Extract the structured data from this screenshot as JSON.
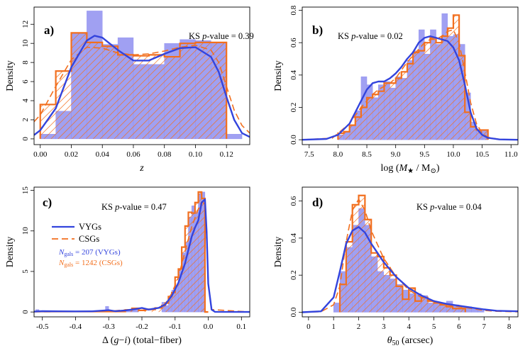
{
  "figure": {
    "colors": {
      "vygs": "#3344dd",
      "vygs_fill": "#8f8ff0",
      "csgs": "#f26f1e"
    }
  },
  "legend": {
    "vygs_label": "VYGs",
    "csgs_label": "CSGs",
    "ngal_symbol": "N",
    "ngal_subscript": "gals",
    "vygs_count": " = 207 (VYGs)",
    "csgs_count": " = 1242 (CSGs)"
  },
  "chart_data": [
    {
      "id": "a",
      "type": "histogram",
      "panel_tag": "a)",
      "ks_prefix": "KS ",
      "ks_italic": "p",
      "ks_suffix": "-value = 0.39",
      "xlabel_parts": [
        {
          "t": "z",
          "i": true
        }
      ],
      "ylabel": "Density",
      "xlim": [
        -0.004,
        0.135
      ],
      "ylim": [
        -0.6,
        13.8
      ],
      "xticks": [
        0.0,
        0.02,
        0.04,
        0.06,
        0.08,
        0.1,
        0.12
      ],
      "xtick_labels": [
        "0.00",
        "0.02",
        "0.04",
        "0.06",
        "0.08",
        "0.10",
        "0.12"
      ],
      "yticks": [
        0,
        2,
        4,
        6,
        8,
        10,
        12
      ],
      "ytick_labels": [
        "0",
        "2",
        "4",
        "6",
        "8",
        "10",
        "12"
      ],
      "series": [
        {
          "name": "VYGs",
          "bins": [
            0.0,
            0.01,
            0.02,
            0.03,
            0.04,
            0.05,
            0.06,
            0.07,
            0.08,
            0.09,
            0.1,
            0.11,
            0.12,
            0.13
          ],
          "values": [
            0.5,
            2.9,
            11.0,
            13.4,
            9.9,
            10.6,
            7.8,
            7.8,
            10.0,
            10.4,
            10.3,
            10.1,
            0.5
          ],
          "kde_x": [
            -0.004,
            0.0,
            0.01,
            0.02,
            0.03,
            0.035,
            0.04,
            0.05,
            0.06,
            0.07,
            0.08,
            0.09,
            0.1,
            0.11,
            0.115,
            0.12,
            0.125,
            0.13,
            0.135
          ],
          "kde_y": [
            0.4,
            0.9,
            3.2,
            7.5,
            10.3,
            10.8,
            10.6,
            9.3,
            8.2,
            8.2,
            8.9,
            9.5,
            9.6,
            8.6,
            7.0,
            4.4,
            2.0,
            0.6,
            0.2
          ]
        },
        {
          "name": "CSGs",
          "bins": [
            0.0,
            0.01,
            0.02,
            0.03,
            0.04,
            0.05,
            0.06,
            0.07,
            0.08,
            0.09,
            0.1,
            0.11,
            0.12
          ],
          "values": [
            3.6,
            7.1,
            11.1,
            10.1,
            9.7,
            8.8,
            8.7,
            8.8,
            8.6,
            10.0,
            10.1,
            10.1
          ],
          "kde_x": [
            -0.004,
            0.0,
            0.01,
            0.02,
            0.03,
            0.04,
            0.05,
            0.06,
            0.07,
            0.08,
            0.09,
            0.1,
            0.11,
            0.115,
            0.12,
            0.125,
            0.13,
            0.135
          ],
          "kde_y": [
            1.8,
            2.5,
            5.5,
            8.3,
            9.6,
            9.5,
            9.0,
            8.8,
            8.9,
            9.2,
            9.6,
            9.8,
            9.3,
            8.0,
            5.5,
            3.0,
            1.4,
            0.6
          ]
        }
      ]
    },
    {
      "id": "b",
      "type": "histogram",
      "panel_tag": "b)",
      "ks_prefix": "KS ",
      "ks_italic": "p",
      "ks_suffix": "-value = 0.02",
      "xlabel_parts": [
        {
          "t": "log (",
          "i": false
        },
        {
          "t": "M",
          "i": true
        },
        {
          "t": "★",
          "i": false,
          "sub": true
        },
        {
          "t": " / M",
          "i": false
        },
        {
          "t": "⊙",
          "i": false,
          "sub": true
        },
        {
          "t": ")",
          "i": false
        }
      ],
      "ylabel": "Density",
      "xlim": [
        7.38,
        11.12
      ],
      "ylim": [
        -0.03,
        0.82
      ],
      "xticks": [
        7.5,
        8.0,
        8.5,
        9.0,
        9.5,
        10.0,
        10.5,
        11.0
      ],
      "xtick_labels": [
        "7.5",
        "8.0",
        "8.5",
        "9.0",
        "9.5",
        "10.0",
        "10.5",
        "11.0"
      ],
      "yticks": [
        0.0,
        0.2,
        0.4,
        0.6,
        0.8
      ],
      "ytick_labels": [
        "0.0",
        "0.2",
        "0.4",
        "0.6",
        "0.8"
      ],
      "series": [
        {
          "name": "VYGs",
          "bins": [
            8.0,
            8.1,
            8.2,
            8.3,
            8.4,
            8.5,
            8.6,
            8.7,
            8.8,
            8.9,
            9.0,
            9.1,
            9.2,
            9.3,
            9.4,
            9.5,
            9.6,
            9.7,
            9.8,
            9.9,
            10.0,
            10.1,
            10.2,
            10.3,
            10.4,
            10.5,
            10.6
          ],
          "values": [
            0.03,
            0.05,
            0.09,
            0.18,
            0.39,
            0.34,
            0.26,
            0.34,
            0.36,
            0.32,
            0.39,
            0.38,
            0.49,
            0.55,
            0.68,
            0.53,
            0.68,
            0.59,
            0.78,
            0.64,
            0.65,
            0.59,
            0.29,
            0.11,
            0.06,
            0.06
          ],
          "kde_x": [
            7.38,
            7.8,
            8.0,
            8.2,
            8.4,
            8.5,
            8.6,
            8.7,
            8.8,
            8.9,
            9.0,
            9.1,
            9.2,
            9.3,
            9.4,
            9.5,
            9.6,
            9.7,
            9.8,
            9.9,
            10.0,
            10.1,
            10.2,
            10.3,
            10.4,
            10.5,
            10.6,
            10.8,
            11.12
          ],
          "kde_y": [
            0.0,
            0.005,
            0.03,
            0.1,
            0.24,
            0.31,
            0.35,
            0.36,
            0.36,
            0.38,
            0.41,
            0.45,
            0.5,
            0.54,
            0.6,
            0.63,
            0.64,
            0.63,
            0.62,
            0.61,
            0.57,
            0.49,
            0.34,
            0.17,
            0.07,
            0.03,
            0.012,
            0.002,
            0.0
          ]
        },
        {
          "name": "CSGs",
          "bins": [
            8.0,
            8.1,
            8.2,
            8.3,
            8.4,
            8.5,
            8.6,
            8.7,
            8.8,
            8.9,
            9.0,
            9.1,
            9.2,
            9.3,
            9.4,
            9.5,
            9.6,
            9.7,
            9.8,
            9.9,
            10.0,
            10.1,
            10.2,
            10.3,
            10.4,
            10.5,
            10.6
          ],
          "values": [
            0.04,
            0.05,
            0.09,
            0.14,
            0.2,
            0.26,
            0.28,
            0.3,
            0.35,
            0.35,
            0.38,
            0.42,
            0.47,
            0.54,
            0.55,
            0.6,
            0.63,
            0.6,
            0.64,
            0.69,
            0.77,
            0.52,
            0.17,
            0.08,
            0.06,
            0.06
          ],
          "kde_x": [
            7.38,
            7.9,
            8.0,
            8.2,
            8.4,
            8.5,
            8.6,
            8.7,
            8.8,
            8.9,
            9.0,
            9.1,
            9.2,
            9.3,
            9.4,
            9.5,
            9.6,
            9.7,
            9.8,
            9.9,
            10.0,
            10.1,
            10.2,
            10.3,
            10.4,
            10.5,
            10.6,
            10.8,
            11.12
          ],
          "kde_y": [
            0.0,
            0.01,
            0.04,
            0.1,
            0.2,
            0.24,
            0.28,
            0.31,
            0.33,
            0.35,
            0.38,
            0.43,
            0.48,
            0.52,
            0.56,
            0.6,
            0.62,
            0.62,
            0.64,
            0.67,
            0.68,
            0.6,
            0.42,
            0.23,
            0.1,
            0.04,
            0.015,
            0.002,
            0.0
          ]
        }
      ]
    },
    {
      "id": "c",
      "type": "histogram",
      "panel_tag": "c)",
      "ks_prefix": "KS ",
      "ks_italic": "p",
      "ks_suffix": "-value = 0.47",
      "xlabel_parts": [
        {
          "t": "Δ (",
          "i": false
        },
        {
          "t": "g",
          "i": true
        },
        {
          "t": "−",
          "i": false
        },
        {
          "t": "i",
          "i": true
        },
        {
          "t": ") (total−fiber)",
          "i": false
        }
      ],
      "ylabel": "Density",
      "xlim": [
        -0.525,
        0.125
      ],
      "ylim": [
        -0.6,
        15.4
      ],
      "xticks": [
        -0.5,
        -0.4,
        -0.3,
        -0.2,
        -0.1,
        0.0,
        0.1
      ],
      "xtick_labels": [
        "-0.5",
        "-0.4",
        "-0.3",
        "-0.2",
        "-0.1",
        "0.0",
        "0.1"
      ],
      "yticks": [
        0,
        5,
        10,
        15
      ],
      "ytick_labels": [
        "0",
        "5",
        "10",
        "15"
      ],
      "series": [
        {
          "name": "VYGs",
          "bins": [
            -0.52,
            -0.51,
            -0.49,
            -0.31,
            -0.3,
            -0.29,
            -0.25,
            -0.23,
            -0.21,
            -0.2,
            -0.14,
            -0.13,
            -0.12,
            -0.11,
            -0.1,
            -0.09,
            -0.08,
            -0.07,
            -0.06,
            -0.05,
            -0.04,
            -0.03,
            -0.02,
            -0.01,
            0.0
          ],
          "values": [
            0.3,
            0.0,
            0.0,
            0.7,
            0.0,
            0.0,
            0.2,
            0.5,
            0.0,
            0.0,
            1.2,
            0.8,
            1.9,
            2.7,
            3.3,
            5.1,
            7.3,
            8.6,
            11.7,
            13.1,
            12.3,
            14.6,
            14.8,
            0.0
          ],
          "kde_x": [
            -0.525,
            -0.5,
            -0.45,
            -0.4,
            -0.35,
            -0.31,
            -0.3,
            -0.28,
            -0.25,
            -0.22,
            -0.2,
            -0.18,
            -0.15,
            -0.13,
            -0.11,
            -0.09,
            -0.07,
            -0.05,
            -0.04,
            -0.03,
            -0.02,
            -0.01,
            -0.005,
            0.0,
            0.01,
            0.02,
            0.125
          ],
          "kde_y": [
            0.05,
            0.1,
            0.08,
            0.07,
            0.08,
            0.2,
            0.22,
            0.1,
            0.2,
            0.35,
            0.5,
            0.3,
            0.5,
            0.9,
            2.0,
            3.6,
            6.0,
            9.3,
            10.4,
            11.3,
            13.5,
            13.9,
            10.0,
            3.5,
            0.3,
            0.02,
            0.0
          ]
        },
        {
          "name": "CSGs",
          "bins": [
            -0.52,
            -0.25,
            -0.23,
            -0.21,
            -0.19,
            -0.16,
            -0.14,
            -0.13,
            -0.12,
            -0.11,
            -0.1,
            -0.09,
            -0.08,
            -0.07,
            -0.06,
            -0.05,
            -0.04,
            -0.03,
            -0.02,
            -0.01,
            0.0
          ],
          "values": [
            0.05,
            0.25,
            0.45,
            0.2,
            0.3,
            0.5,
            0.8,
            1.1,
            1.9,
            2.4,
            4.3,
            5.3,
            8.0,
            10.6,
            12.3,
            12.2,
            13.5,
            14.8,
            14.0,
            0.0
          ],
          "kde_x": [
            -0.525,
            -0.4,
            -0.3,
            -0.25,
            -0.22,
            -0.2,
            -0.18,
            -0.15,
            -0.13,
            -0.11,
            -0.09,
            -0.07,
            -0.05,
            -0.04,
            -0.03,
            -0.02,
            -0.01,
            -0.005,
            0.0,
            0.01,
            0.125
          ],
          "kde_y": [
            0.02,
            0.05,
            0.1,
            0.25,
            0.35,
            0.4,
            0.35,
            0.5,
            1.0,
            2.3,
            4.3,
            7.5,
            10.5,
            11.6,
            12.7,
            13.6,
            13.3,
            9.0,
            3.5,
            0.3,
            0.0
          ]
        }
      ]
    },
    {
      "id": "d",
      "type": "histogram",
      "panel_tag": "d)",
      "ks_prefix": "KS ",
      "ks_italic": "p",
      "ks_suffix": "-value = 0.04",
      "xlabel_parts": [
        {
          "t": "θ",
          "i": true
        },
        {
          "t": "50",
          "i": false,
          "sub": true
        },
        {
          "t": " (arcsec)",
          "i": false
        }
      ],
      "ylabel": "Density",
      "xlim": [
        -0.25,
        8.35
      ],
      "ylim": [
        -0.025,
        0.675
      ],
      "xticks": [
        0,
        1,
        2,
        3,
        4,
        5,
        6,
        7,
        8
      ],
      "xtick_labels": [
        "0",
        "1",
        "2",
        "3",
        "4",
        "5",
        "6",
        "7",
        "8"
      ],
      "yticks": [
        0.0,
        0.2,
        0.4,
        0.6
      ],
      "ytick_labels": [
        "0.0",
        "0.2",
        "0.4",
        "0.6"
      ],
      "series": [
        {
          "name": "VYGs",
          "bins": [
            1.0,
            1.25,
            1.5,
            1.75,
            2.0,
            2.25,
            2.5,
            2.75,
            3.0,
            3.25,
            3.5,
            3.75,
            4.0,
            4.25,
            4.5,
            4.75,
            5.0,
            5.25,
            5.5,
            5.75,
            6.0,
            6.25,
            6.5,
            6.75,
            7.0
          ],
          "values": [
            0.05,
            0.22,
            0.35,
            0.47,
            0.56,
            0.47,
            0.3,
            0.22,
            0.2,
            0.18,
            0.15,
            0.12,
            0.1,
            0.1,
            0.09,
            0.05,
            0.05,
            0.05,
            0.06,
            0.04,
            0.03,
            0.03,
            0.02,
            0.01
          ],
          "kde_x": [
            -0.25,
            0.5,
            1.0,
            1.25,
            1.5,
            1.75,
            2.0,
            2.25,
            2.5,
            3.0,
            3.5,
            4.0,
            4.5,
            5.0,
            5.5,
            6.0,
            6.5,
            7.0,
            7.5,
            8.35
          ],
          "kde_y": [
            0.0,
            0.005,
            0.08,
            0.22,
            0.37,
            0.44,
            0.46,
            0.43,
            0.37,
            0.27,
            0.19,
            0.13,
            0.09,
            0.06,
            0.045,
            0.035,
            0.025,
            0.015,
            0.008,
            0.005
          ]
        },
        {
          "name": "CSGs",
          "bins": [
            1.25,
            1.5,
            1.75,
            2.0,
            2.25,
            2.5,
            2.75,
            3.0,
            3.25,
            3.5,
            3.75,
            4.0,
            4.25,
            4.5,
            4.75,
            5.0,
            5.25,
            5.5,
            5.75,
            6.0,
            6.25
          ],
          "values": [
            0.15,
            0.38,
            0.58,
            0.63,
            0.5,
            0.32,
            0.3,
            0.24,
            0.2,
            0.14,
            0.07,
            0.13,
            0.06,
            0.08,
            0.06,
            0.05,
            0.04,
            0.03,
            0.02,
            0.02
          ],
          "kde_x": [
            -0.25,
            0.5,
            1.0,
            1.25,
            1.5,
            1.75,
            2.0,
            2.25,
            2.5,
            3.0,
            3.5,
            4.0,
            4.5,
            5.0,
            5.5,
            6.0,
            6.5,
            7.0,
            7.5,
            8.35
          ],
          "kde_y": [
            0.0,
            0.003,
            0.04,
            0.14,
            0.38,
            0.55,
            0.61,
            0.55,
            0.44,
            0.29,
            0.19,
            0.12,
            0.08,
            0.055,
            0.04,
            0.03,
            0.02,
            0.01,
            0.005,
            0.002
          ]
        }
      ]
    }
  ]
}
